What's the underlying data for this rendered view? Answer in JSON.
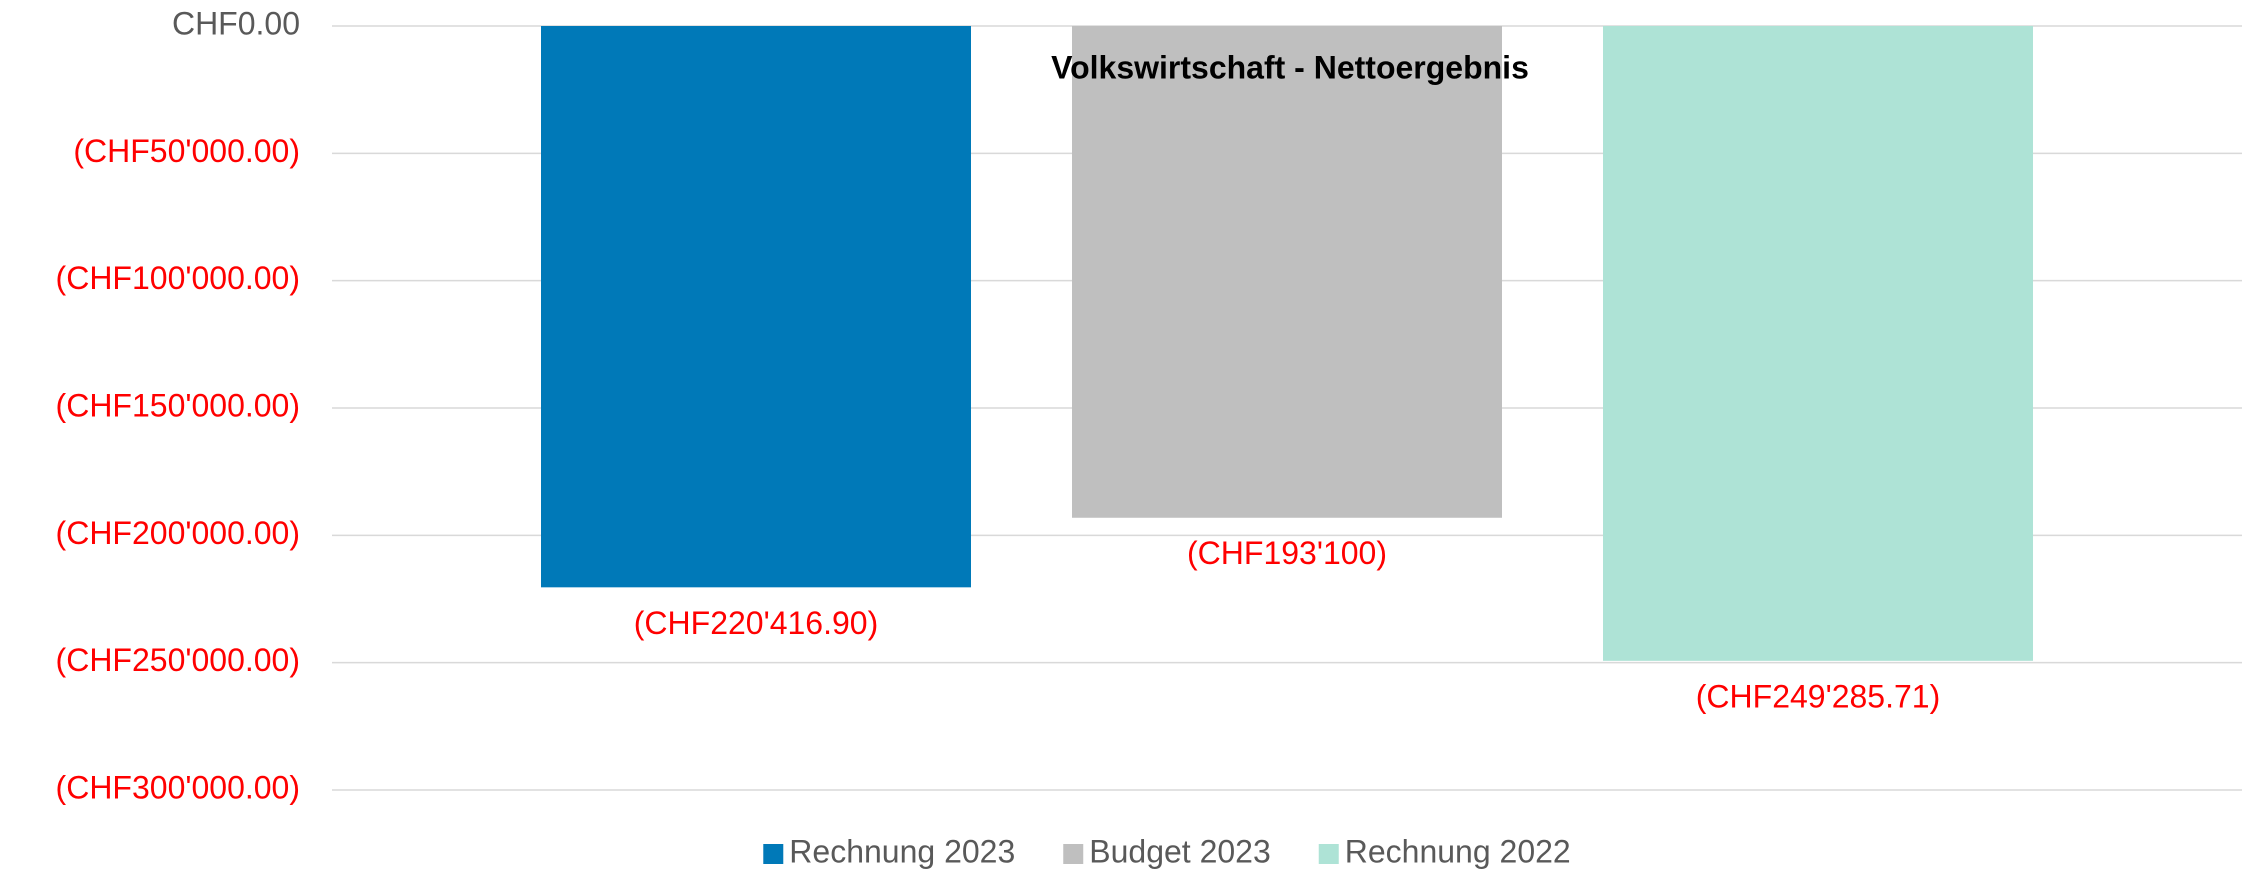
{
  "chart_data": {
    "type": "bar",
    "title": "Volkswirtschaft - Nettoergebnis",
    "categories": [
      null
    ],
    "series": [
      {
        "name": "Rechnung 2023",
        "color": "#0079b8",
        "values": [
          -220416.9
        ],
        "value_labels": [
          "(CHF220'416.90)"
        ]
      },
      {
        "name": "Budget 2023",
        "color": "#bfbfbf",
        "values": [
          -193100
        ],
        "value_labels": [
          "(CHF193'100)"
        ]
      },
      {
        "name": "Rechnung 2022",
        "color": "#aee3d6",
        "values": [
          -249285.71
        ],
        "value_labels": [
          "(CHF249'285.71)"
        ]
      }
    ],
    "ylim": [
      -300000,
      0
    ],
    "yticks": [
      {
        "value": 0,
        "label": "CHF0.00"
      },
      {
        "value": -50000,
        "label": "(CHF50'000.00)"
      },
      {
        "value": -100000,
        "label": "(CHF100'000.00)"
      },
      {
        "value": -150000,
        "label": "(CHF150'000.00)"
      },
      {
        "value": -200000,
        "label": "(CHF200'000.00)"
      },
      {
        "value": -250000,
        "label": "(CHF250'000.00)"
      },
      {
        "value": -300000,
        "label": "(CHF300'000.00)"
      }
    ],
    "negative_color": "#ff0000",
    "grid": true,
    "legend": "bottom"
  }
}
